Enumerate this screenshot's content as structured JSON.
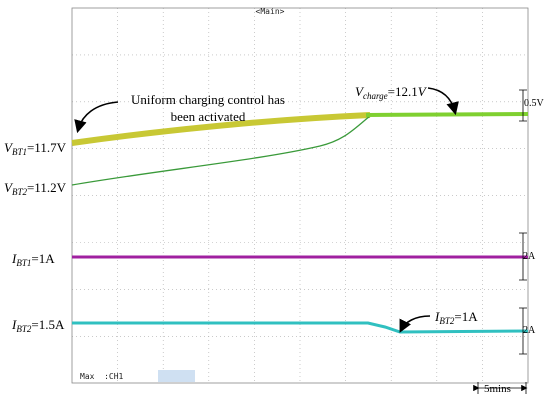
{
  "screen": {
    "header": "<Main>",
    "footer": "Max  :CH1",
    "time_scale": "5mins"
  },
  "labels": {
    "vbt1": {
      "symbol": "V",
      "sub": "BT1",
      "rest": "=11.7V"
    },
    "vbt2": {
      "symbol": "V",
      "sub": "BT2",
      "rest": "=11.2V"
    },
    "ibt1": {
      "symbol": "I",
      "sub": "BT1",
      "rest": "=1A"
    },
    "ibt2": {
      "symbol": "I",
      "sub": "BT2",
      "rest": "=1.5A"
    },
    "vcharge": {
      "symbol": "V",
      "sub": "charge",
      "rest": "=12.1",
      "unit": "V"
    },
    "ibt2_after": {
      "symbol": "I",
      "sub": "BT2",
      "rest": "=1A"
    }
  },
  "annotation": [
    "Uniform charging control has",
    "been activated"
  ],
  "scales": {
    "voltage": "0.5V",
    "current1": "2A",
    "current2": "2A"
  }
}
